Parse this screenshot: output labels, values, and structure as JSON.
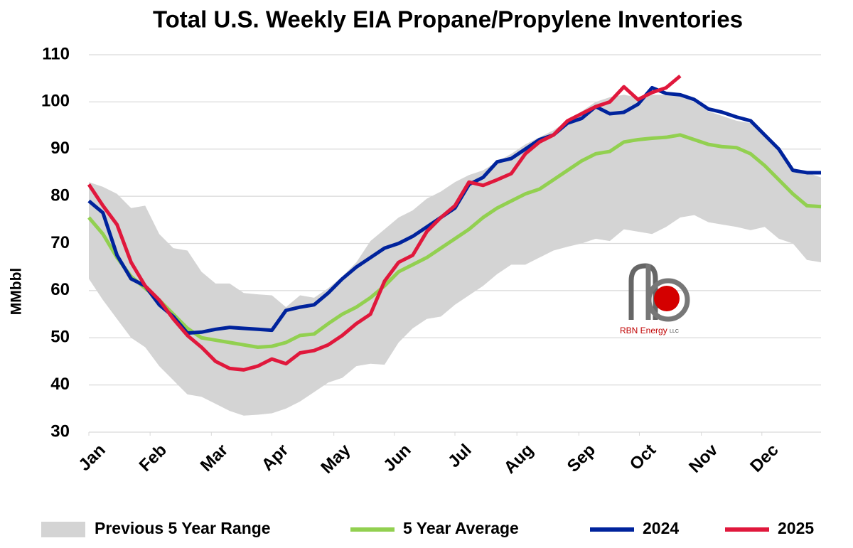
{
  "chart_data": {
    "type": "line",
    "title": "Total U.S. Weekly EIA Propane/Propylene Inventories",
    "y_label": "MMbbl",
    "xlim": [
      0,
      52
    ],
    "xticks": [
      {
        "value": 0,
        "label": "Jan"
      },
      {
        "value": 4.35,
        "label": "Feb"
      },
      {
        "value": 8.7,
        "label": "Mar"
      },
      {
        "value": 13,
        "label": "Apr"
      },
      {
        "value": 17.4,
        "label": "May"
      },
      {
        "value": 21.7,
        "label": "Jun"
      },
      {
        "value": 26,
        "label": "Jul"
      },
      {
        "value": 30.4,
        "label": "Aug"
      },
      {
        "value": 34.8,
        "label": "Sep"
      },
      {
        "value": 39.1,
        "label": "Oct"
      },
      {
        "value": 43.5,
        "label": "Nov"
      },
      {
        "value": 47.8,
        "label": "Dec"
      }
    ],
    "ylim": [
      30,
      110
    ],
    "yticks": [
      30,
      40,
      50,
      60,
      70,
      80,
      90,
      100,
      110
    ],
    "grid": true,
    "legend": "bottom",
    "x": [
      0,
      1,
      2,
      3,
      4,
      5,
      6,
      7,
      8,
      9,
      10,
      11,
      12,
      13,
      14,
      15,
      16,
      17,
      18,
      19,
      20,
      21,
      22,
      23,
      24,
      25,
      26,
      27,
      28,
      29,
      30,
      31,
      32,
      33,
      34,
      35,
      36,
      37,
      38,
      39,
      40,
      41,
      42,
      43,
      44,
      45,
      46,
      47,
      48,
      49,
      50,
      51,
      52
    ],
    "range": {
      "name": "Previous 5 Year Range",
      "color": "#d4d4d4",
      "high": [
        83,
        82,
        80.5,
        77.5,
        78,
        72,
        69,
        68.5,
        64,
        61.5,
        61.5,
        59.5,
        59.2,
        59,
        56.5,
        59,
        58.5,
        60.5,
        63,
        66,
        70.5,
        73,
        75.5,
        77,
        79.5,
        81,
        83,
        84.5,
        85.5,
        87.3,
        89,
        91,
        92.5,
        94,
        96,
        98,
        100,
        101,
        101.5,
        101,
        101.5,
        101.5,
        101.5,
        100,
        98,
        97,
        96,
        95.5,
        93,
        90,
        86,
        85,
        84
      ],
      "low": [
        62.5,
        58,
        54,
        50,
        48,
        44,
        41,
        38,
        37.5,
        36,
        34.5,
        33.5,
        33.7,
        34,
        35,
        36.5,
        38.5,
        40.5,
        41.5,
        44,
        44.5,
        44.3,
        49,
        52,
        54,
        54.5,
        57,
        59,
        61,
        63.5,
        65.5,
        65.5,
        67,
        68.5,
        69.3,
        70,
        71,
        70.5,
        73,
        72.5,
        72,
        73.5,
        75.5,
        76,
        74.5,
        74,
        73.5,
        72.8,
        73.5,
        71,
        70,
        66.5,
        66
      ]
    },
    "series": [
      {
        "name": "5 Year Average",
        "color": "#92d050",
        "values": [
          75.5,
          72,
          67,
          63,
          60.5,
          58,
          55,
          52,
          50,
          49.5,
          49,
          48.5,
          48,
          48.2,
          49,
          50.5,
          50.8,
          53,
          55,
          56.5,
          58.5,
          61,
          64,
          65.5,
          67,
          69,
          71,
          73,
          75.5,
          77.5,
          79,
          80.5,
          81.5,
          83.5,
          85.5,
          87.5,
          89,
          89.5,
          91.5,
          92,
          92.3,
          92.5,
          93,
          92,
          91,
          90.5,
          90.3,
          89,
          86.5,
          83.5,
          80.5,
          78,
          77.8
        ]
      },
      {
        "name": "2024",
        "color": "#00239c",
        "values": [
          79,
          76.5,
          67.5,
          62.5,
          61,
          57,
          54.5,
          51,
          51.2,
          51.8,
          52.2,
          52,
          51.8,
          51.6,
          55.8,
          56.5,
          57,
          59.5,
          62.5,
          65,
          67,
          69,
          70,
          71.5,
          73.5,
          75.5,
          77.5,
          82.5,
          84,
          87.3,
          88,
          90,
          92,
          93,
          95.5,
          96.5,
          99,
          97.5,
          97.8,
          99.5,
          103,
          101.8,
          101.5,
          100.5,
          98.5,
          97.8,
          96.8,
          96,
          93,
          90,
          85.5,
          85,
          85
        ]
      },
      {
        "name": "2025",
        "color": "#e0183c",
        "values": [
          82.5,
          78,
          74,
          66,
          61,
          58,
          54,
          50.5,
          48,
          45,
          43.5,
          43.2,
          44,
          45.5,
          44.5,
          46.8,
          47.3,
          48.5,
          50.5,
          53,
          55,
          62,
          66,
          67.5,
          72.5,
          75.5,
          78,
          83,
          82.3,
          83.5,
          84.8,
          89,
          91.5,
          93,
          96,
          97.5,
          99,
          100,
          103.2,
          100.5,
          102,
          103,
          105.5,
          null,
          null,
          null,
          null,
          null,
          null,
          null,
          null,
          null,
          null
        ]
      }
    ],
    "logo": {
      "brand": "RBN Energy",
      "suffix": "LLC"
    }
  }
}
